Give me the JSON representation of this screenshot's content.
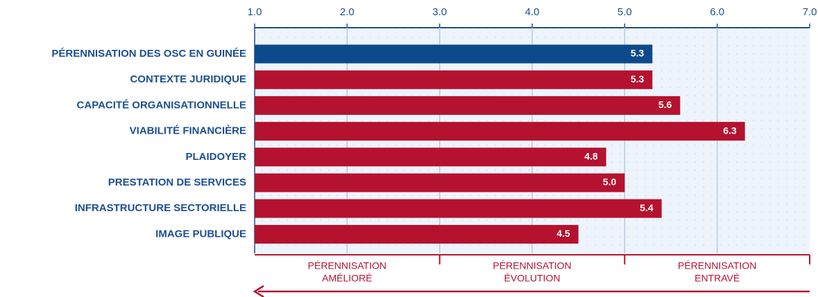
{
  "chart_data": {
    "type": "bar",
    "orientation": "horizontal",
    "categories": [
      "PÉRENNISATION DES OSC EN GUINÉE",
      "CONTEXTE JURIDIQUE",
      "CAPACITÉ ORGANISATIONNELLE",
      "VIABILITÉ FINANCIÈRE",
      "PLAIDOYER",
      "PRESTATION DE SERVICES",
      "INFRASTRUCTURE SECTORIELLE",
      "IMAGE PUBLIQUE"
    ],
    "values": [
      5.3,
      5.3,
      5.6,
      6.3,
      4.8,
      5.0,
      5.4,
      4.5
    ],
    "value_labels": [
      "5.3",
      "5.3",
      "5.6",
      "6.3",
      "4.8",
      "5.0",
      "5.4",
      "4.5"
    ],
    "colors": [
      "#0d4a8b",
      "#b5122f",
      "#b5122f",
      "#b5122f",
      "#b5122f",
      "#b5122f",
      "#b5122f",
      "#b5122f"
    ],
    "xlim": [
      1,
      7
    ],
    "xticks": [
      {
        "value": 1,
        "label": "1.0"
      },
      {
        "value": 2,
        "label": "2.0"
      },
      {
        "value": 3,
        "label": "3.0"
      },
      {
        "value": 4,
        "label": "4.0"
      },
      {
        "value": 5,
        "label": "5.0"
      },
      {
        "value": 6,
        "label": "6.0"
      },
      {
        "value": 7,
        "label": "7.0"
      }
    ],
    "grid": true,
    "zones": [
      {
        "range": [
          1,
          3
        ],
        "lines": [
          "PÉRENNISATION",
          "AMÉLIORÉ"
        ]
      },
      {
        "range": [
          3,
          5
        ],
        "lines": [
          "PÉRENNISATION",
          "ÉVOLUTION"
        ]
      },
      {
        "range": [
          5,
          7
        ],
        "lines": [
          "PÉRENNISATION",
          "ENTRAVÉ"
        ]
      }
    ]
  }
}
